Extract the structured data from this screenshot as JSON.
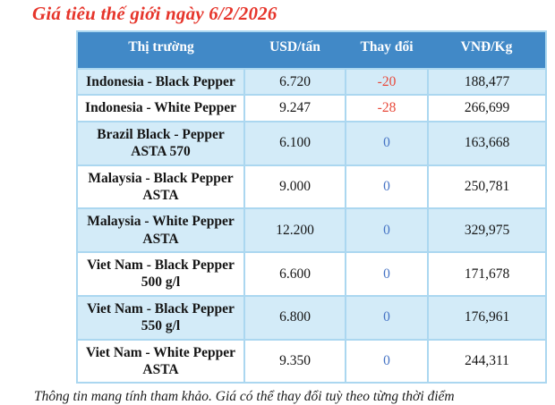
{
  "title": "Giá tiêu thế giới ngày 6/2/2026",
  "table": {
    "headers": [
      "Thị trường",
      "USD/tấn",
      "Thay đổi",
      "VNĐ/Kg"
    ],
    "rows": [
      {
        "market": "Indonesia - Black Pepper",
        "usd": "6.720",
        "change": "-20",
        "vnd": "188,477"
      },
      {
        "market": "Indonesia - White Pepper",
        "usd": "9.247",
        "change": "-28",
        "vnd": "266,699"
      },
      {
        "market": "Brazil Black - Pepper ASTA 570",
        "usd": "6.100",
        "change": "0",
        "vnd": "163,668"
      },
      {
        "market": "Malaysia - Black Pepper ASTA",
        "usd": "9.000",
        "change": "0",
        "vnd": "250,781"
      },
      {
        "market": "Malaysia - White Pepper ASTA",
        "usd": "12.200",
        "change": "0",
        "vnd": "329,975"
      },
      {
        "market": "Viet Nam - Black Pepper 500 g/l",
        "usd": "6.600",
        "change": "0",
        "vnd": "171,678"
      },
      {
        "market": "Viet Nam - Black Pepper 550 g/l",
        "usd": "6.800",
        "change": "0",
        "vnd": "176,961"
      },
      {
        "market": "Viet Nam - White Pepper ASTA",
        "usd": "9.350",
        "change": "0",
        "vnd": "244,311"
      }
    ]
  },
  "footer_note": "Thông tin mang tính tham khảo. Giá có thể thay đổi tuỳ theo từng thời điểm",
  "colors": {
    "title_red": "#e6352b",
    "header_blue": "#4189c7",
    "row_alt_blue": "#d3ebf8",
    "border_blue": "#abd7f0",
    "change_negative": "#e8493a",
    "change_zero": "#4472c4"
  }
}
